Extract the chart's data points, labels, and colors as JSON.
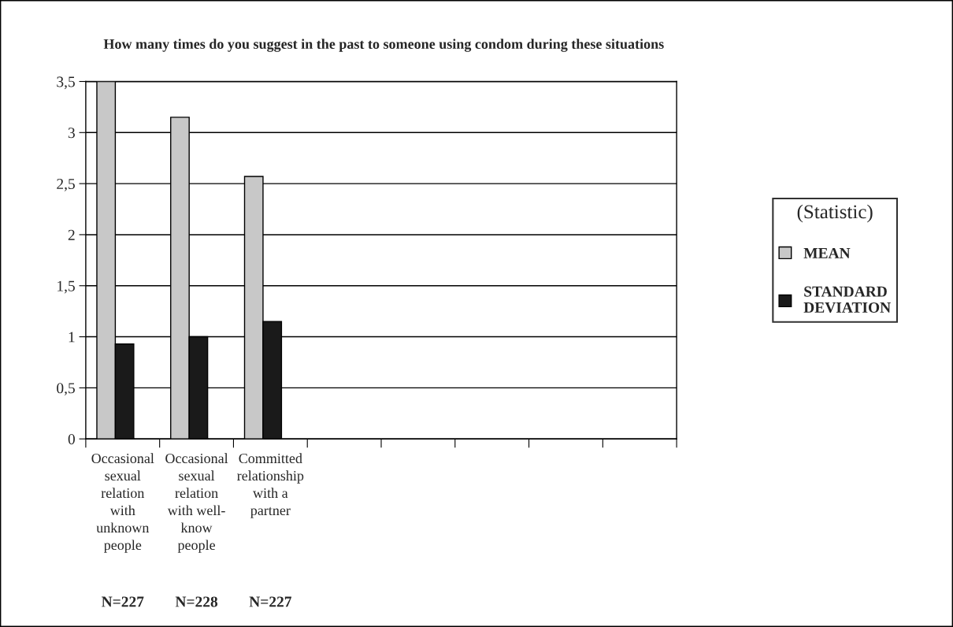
{
  "chart_data": {
    "type": "bar",
    "title": "How many times do you suggest in the past to someone using condom during these situations",
    "categories": [
      "Occasional\nsexual\nrelation\nwith\nunknown\npeople",
      "Occasional\nsexual\nrelation\nwith well-\nknow\npeople",
      "Committed\nrelationship\nwith a\npartner",
      null,
      null,
      null,
      null,
      null
    ],
    "series": [
      {
        "name": "MEAN",
        "color": "#c8c8c8",
        "values": [
          3.5,
          3.15,
          2.57,
          null,
          null,
          null,
          null,
          null
        ]
      },
      {
        "name": "STANDARD\nDEVIATION",
        "color": "#1a1a1a",
        "values": [
          0.93,
          1.0,
          1.15,
          null,
          null,
          null,
          null,
          null
        ]
      }
    ],
    "ylim": [
      0,
      3.5
    ],
    "yticks": [
      {
        "value": 0,
        "label": "0"
      },
      {
        "value": 0.5,
        "label": "0,5"
      },
      {
        "value": 1,
        "label": "1"
      },
      {
        "value": 1.5,
        "label": "1,5"
      },
      {
        "value": 2,
        "label": "2"
      },
      {
        "value": 2.5,
        "label": "2,5"
      },
      {
        "value": 3,
        "label": "3"
      },
      {
        "value": 3.5,
        "label": "3,5"
      }
    ],
    "grid": "y",
    "legend": "right",
    "legend_title": "(Statistic)",
    "annotations": [
      "N=227",
      "N=228",
      "N=227"
    ]
  }
}
